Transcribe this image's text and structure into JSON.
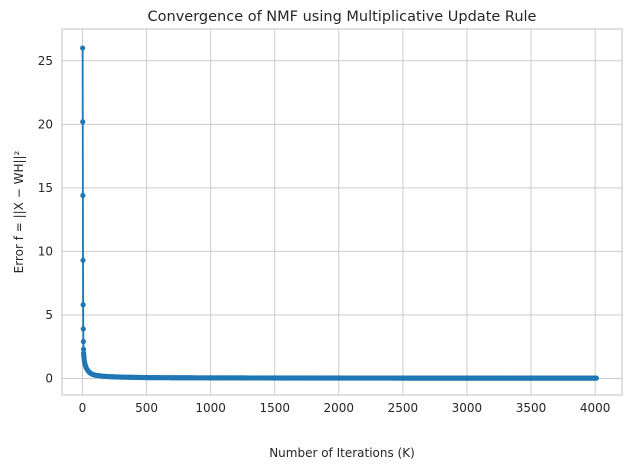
{
  "chart_data": {
    "type": "line",
    "title": "Convergence of NMF using Multiplicative Update Rule",
    "xlabel": "Number of Iterations (K)",
    "ylabel": "Error f = ||X − WH||²",
    "xlim": [
      -160,
      4210
    ],
    "ylim": [
      -1.3,
      27.5
    ],
    "xticks": [
      0,
      500,
      1000,
      1500,
      2000,
      2500,
      3000,
      3500,
      4000
    ],
    "yticks": [
      0,
      5,
      10,
      15,
      20,
      25
    ],
    "grid": true,
    "legend": "none",
    "series": [
      {
        "color": "#1f77b4",
        "marker": "circle",
        "x": [
          1,
          2,
          3,
          4,
          5,
          6,
          7,
          8,
          9,
          10,
          12,
          14,
          16,
          18,
          20,
          25,
          30,
          40,
          50,
          60,
          80,
          100,
          150,
          200,
          300,
          400,
          500,
          700,
          1000,
          1500,
          2000,
          2500,
          3000,
          3500,
          4000
        ],
        "y": [
          26.0,
          20.2,
          14.4,
          9.3,
          5.8,
          3.9,
          2.9,
          2.3,
          2.0,
          1.8,
          1.6,
          1.45,
          1.3,
          1.2,
          1.1,
          0.95,
          0.82,
          0.65,
          0.52,
          0.43,
          0.32,
          0.26,
          0.19,
          0.15,
          0.11,
          0.09,
          0.07,
          0.06,
          0.05,
          0.04,
          0.035,
          0.03,
          0.028,
          0.026,
          0.025
        ]
      }
    ]
  }
}
